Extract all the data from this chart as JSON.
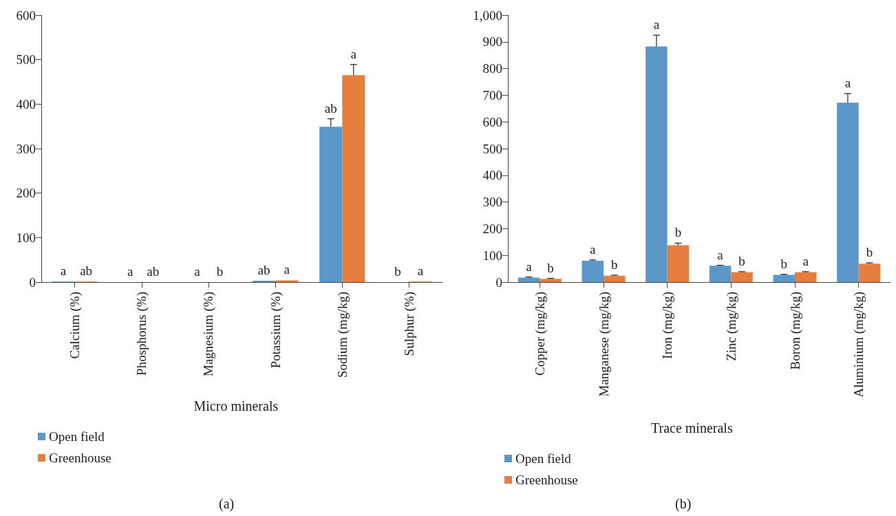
{
  "chart_data": [
    {
      "type": "bar",
      "xlabel": "Micro minerals",
      "categories": [
        "Calcium (%)",
        "Phosphorus (%)",
        "Magnesium (%)",
        "Potassium (%)",
        "Sodium (mg/kg)",
        "Sulphur (%)"
      ],
      "series": [
        {
          "name": "Open field",
          "color": "#5b97c9",
          "values": [
            1,
            0,
            0,
            3,
            349,
            0
          ],
          "errors": [
            null,
            null,
            null,
            null,
            [
              349,
              367
            ],
            null
          ],
          "value_labels": [
            "a",
            "a",
            "a",
            "ab",
            "ab",
            "b"
          ]
        },
        {
          "name": "Greenhouse",
          "color": "#e57e3e",
          "values": [
            1,
            0,
            0,
            4,
            465,
            1
          ],
          "errors": [
            null,
            null,
            null,
            null,
            [
              465,
              489
            ],
            null
          ],
          "value_labels": [
            "ab",
            "ab",
            "b",
            "a",
            "a",
            "a"
          ]
        }
      ],
      "ylim": [
        0,
        600
      ],
      "yticks": [
        0,
        100,
        200,
        300,
        400,
        500,
        600
      ],
      "grid": false,
      "legend": "bottom left",
      "annotations": [
        "(a)"
      ]
    },
    {
      "type": "bar",
      "xlabel": "Trace minerals",
      "categories": [
        "Copper (mg/kg)",
        "Manganese (mg/kg)",
        "Iron (mg/kg)",
        "Zinc (mg/kg)",
        "Boron (mg/kg)",
        "Aluminium (mg/kg)"
      ],
      "series": [
        {
          "name": "Open field",
          "color": "#5b97c9",
          "values": [
            17,
            80,
            883,
            61,
            27,
            672
          ],
          "errors": [
            [
              17,
              19
            ],
            [
              80,
              83
            ],
            [
              883,
              925
            ],
            [
              61,
              63
            ],
            [
              27,
              29
            ],
            [
              672,
              706
            ]
          ],
          "value_labels": [
            "a",
            "a",
            "a",
            "a",
            "b",
            "a"
          ]
        },
        {
          "name": "Greenhouse",
          "color": "#e57e3e",
          "values": [
            12,
            24,
            138,
            37,
            37,
            69
          ],
          "errors": [
            [
              12,
              14
            ],
            [
              24,
              26
            ],
            [
              138,
              146
            ],
            [
              37,
              39
            ],
            [
              37,
              39
            ],
            [
              69,
              72
            ]
          ],
          "value_labels": [
            "b",
            "b",
            "b",
            "b",
            "a",
            "b"
          ]
        }
      ],
      "ylim": [
        0,
        1000
      ],
      "yticks": [
        0,
        100,
        200,
        300,
        400,
        500,
        600,
        700,
        800,
        900,
        {
          "value": 1000,
          "label": "1,000"
        }
      ],
      "grid": false,
      "legend": "bottom left",
      "annotations": [
        "(b)"
      ]
    }
  ]
}
